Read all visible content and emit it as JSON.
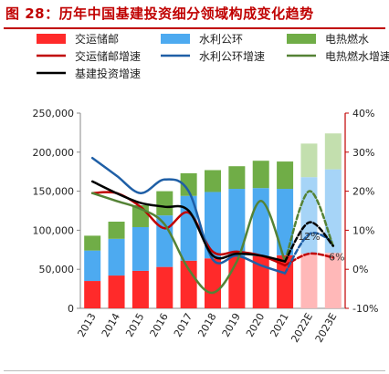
{
  "title": "图 28：历年中国基建投资细分领域构成变化趋势",
  "chart_data": {
    "type": "bar",
    "stacked": true,
    "categories": [
      "2013",
      "2014",
      "2015",
      "2016",
      "2017",
      "2018",
      "2019",
      "2020",
      "2021",
      "2022E",
      "2023E"
    ],
    "projected_categories": [
      "2022E",
      "2023E"
    ],
    "series": [
      {
        "name": "交运储邮",
        "color": "#ff2a2a",
        "projected_color": "#ffb8b8",
        "values": [
          35000,
          42000,
          48000,
          53000,
          61000,
          64000,
          66000,
          67000,
          68000,
          70000,
          71000
        ]
      },
      {
        "name": "水利公环",
        "color": "#4daaf0",
        "projected_color": "#a6d4f7",
        "values": [
          39000,
          47000,
          56000,
          66000,
          83000,
          85000,
          87000,
          87000,
          85000,
          98000,
          107000
        ]
      },
      {
        "name": "电热燃水",
        "color": "#70ad47",
        "projected_color": "#c3dfae",
        "values": [
          19000,
          22000,
          28000,
          31000,
          29000,
          28000,
          29000,
          35000,
          35000,
          43000,
          46000
        ]
      }
    ],
    "line_series": [
      {
        "name": "交运储邮增速",
        "color": "#c00000",
        "values": [
          19.5,
          19.5,
          16,
          10.5,
          14.5,
          4.5,
          4.5,
          3.5,
          1,
          4,
          3
        ]
      },
      {
        "name": "水利公环增速",
        "color": "#1f5fa6",
        "values": [
          28.5,
          24,
          19.5,
          23,
          20,
          2.5,
          3.5,
          1,
          -1,
          9,
          7
        ]
      },
      {
        "name": "电热燃水增速",
        "color": "#548235",
        "values": [
          19.5,
          17.5,
          15.5,
          11.5,
          0,
          -6,
          2,
          17.5,
          2,
          20,
          6
        ]
      },
      {
        "name": "基建投资增速",
        "color": "#000000",
        "values": [
          22.5,
          19.5,
          17,
          16,
          15,
          3.5,
          4,
          3.5,
          2,
          12,
          6
        ]
      }
    ],
    "data_labels": [
      {
        "series": "基建投资增速",
        "category": "2022E",
        "text": "12%"
      },
      {
        "series": "基建投资增速",
        "category": "2023E",
        "text": "6%"
      }
    ],
    "y_left": {
      "min": 0,
      "max": 250000,
      "ticks": [
        "0",
        "50,000",
        "100,000",
        "150,000",
        "200,000",
        "250,000"
      ]
    },
    "y_right": {
      "min": -10,
      "max": 40,
      "ticks": [
        "-10%",
        "0%",
        "10%",
        "20%",
        "30%",
        "40%"
      ]
    },
    "legend": {
      "placement": "top"
    }
  }
}
